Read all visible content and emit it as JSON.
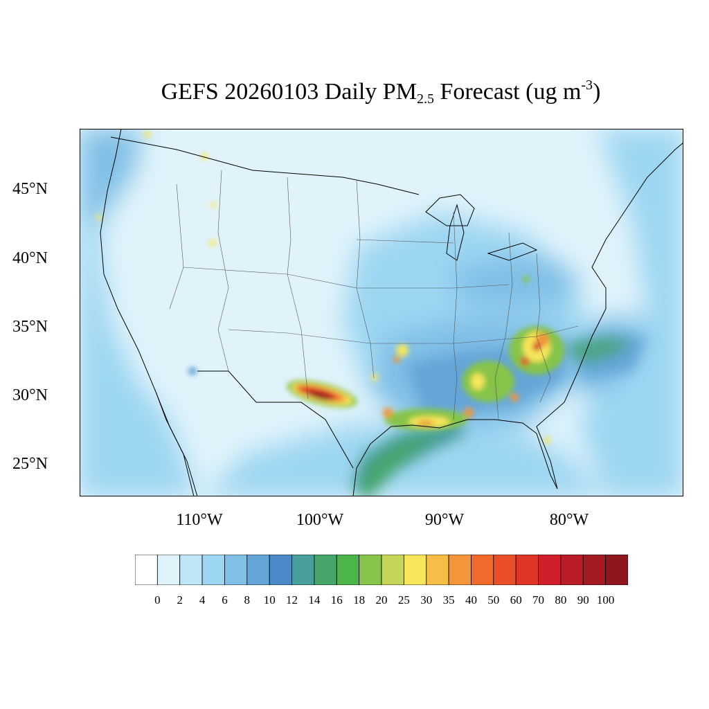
{
  "title": {
    "main": "GEFS 20260103 Daily PM",
    "subscript": "2.5",
    "after_sub": " Forecast (ug m",
    "superscript": "-3",
    "closing": ")"
  },
  "map": {
    "region": "CONUS",
    "projection": "lambert-conformal",
    "lat_labels": [
      {
        "text": "45°N",
        "lat": 45
      },
      {
        "text": "40°N",
        "lat": 40
      },
      {
        "text": "35°N",
        "lat": 35
      },
      {
        "text": "30°N",
        "lat": 30
      },
      {
        "text": "25°N",
        "lat": 25
      }
    ],
    "lon_labels": [
      {
        "text": "110°W",
        "lon": -110
      },
      {
        "text": "100°W",
        "lon": -100
      },
      {
        "text": "90°W",
        "lon": -90
      },
      {
        "text": "80°W",
        "lon": -80
      }
    ],
    "hotspots": [
      {
        "name": "texas-plume",
        "lat": 30.4,
        "lon": -100.2,
        "peak": 100
      },
      {
        "name": "georgia-carolinas",
        "lat": 33.4,
        "lon": -83.5,
        "peak": 70
      },
      {
        "name": "gulf-coast-louisiana",
        "lat": 30.2,
        "lon": -92.0,
        "peak": 35
      },
      {
        "name": "alabama-mississippi",
        "lat": 31.5,
        "lon": -87.5,
        "peak": 30
      },
      {
        "name": "arkansas",
        "lat": 34.5,
        "lon": -93.0,
        "peak": 30
      }
    ]
  },
  "colorbar": {
    "labels": [
      "0",
      "2",
      "4",
      "6",
      "8",
      "10",
      "12",
      "14",
      "16",
      "18",
      "20",
      "25",
      "30",
      "35",
      "40",
      "50",
      "60",
      "70",
      "80",
      "90",
      "100"
    ],
    "colors": [
      "#ffffff",
      "#e0f3fb",
      "#bee6f7",
      "#9dd6f2",
      "#80bfe6",
      "#64a5d8",
      "#4a8ac8",
      "#479e9a",
      "#45a56b",
      "#4bb549",
      "#86c44a",
      "#c4d557",
      "#f7e65a",
      "#f6be47",
      "#f39538",
      "#f06a2c",
      "#e9502a",
      "#de3527",
      "#d01f2a",
      "#b91c26",
      "#a41a21",
      "#8e171d"
    ]
  }
}
